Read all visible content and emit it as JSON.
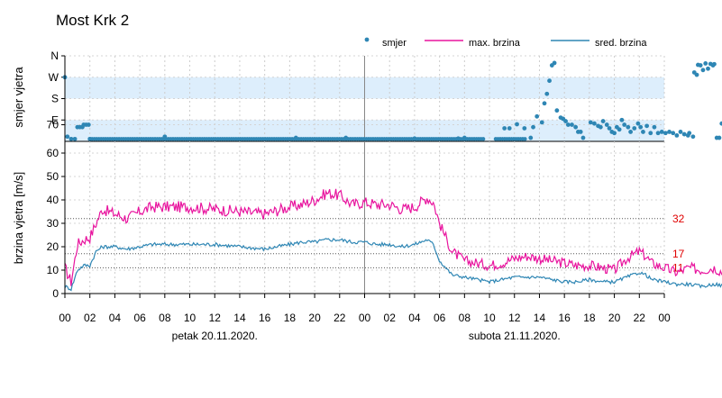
{
  "chart_data": {
    "type": "line",
    "title": "Most Krk 2",
    "x_ticks": [
      "00",
      "02",
      "04",
      "06",
      "08",
      "10",
      "12",
      "14",
      "16",
      "18",
      "20",
      "22",
      "00",
      "02",
      "04",
      "06",
      "08",
      "10",
      "12",
      "14",
      "16",
      "18",
      "20",
      "22",
      "00"
    ],
    "x_range_hours": [
      0,
      48
    ],
    "days": [
      {
        "label": "petak  20.11.2020.",
        "center_hour": 12
      },
      {
        "label": "subota  21.11.2020.",
        "center_hour": 36
      }
    ],
    "legend": {
      "placement": "top-right",
      "entries": [
        "smjer",
        "max. brzina",
        "sred. brzina"
      ]
    },
    "colors": {
      "smjer": "#2e86b4",
      "max": "#e8149e",
      "avg": "#2e86b4",
      "reference": "#e00000",
      "band": "#ddeefc"
    },
    "direction_panel": {
      "ylabel": "smjer vjetra",
      "tick_labels": [
        "N",
        "W",
        "S",
        "E",
        "70"
      ],
      "tick_degrees": [
        360,
        270,
        180,
        90,
        70
      ],
      "ylim": [
        0,
        360
      ],
      "smjer_hour_deg": [
        [
          0.0,
          270
        ],
        [
          0.2,
          20
        ],
        [
          0.5,
          10
        ],
        [
          0.8,
          10
        ],
        [
          1.0,
          60
        ],
        [
          1.2,
          60
        ],
        [
          1.4,
          60
        ],
        [
          1.5,
          70
        ],
        [
          1.7,
          70
        ],
        [
          1.9,
          70
        ],
        [
          2.0,
          10
        ],
        [
          8.0,
          20
        ],
        [
          18.5,
          15
        ],
        [
          22.5,
          15
        ],
        [
          28.0,
          12
        ],
        [
          31.5,
          12
        ],
        [
          32.0,
          15
        ],
        [
          35.2,
          55
        ],
        [
          35.6,
          55
        ],
        [
          36.2,
          72
        ],
        [
          36.8,
          55
        ],
        [
          37.3,
          15
        ],
        [
          37.5,
          60
        ],
        [
          37.8,
          105
        ],
        [
          38.2,
          80
        ],
        [
          38.4,
          160
        ],
        [
          38.6,
          200
        ],
        [
          38.8,
          255
        ],
        [
          39.0,
          320
        ],
        [
          39.2,
          330
        ],
        [
          39.4,
          130
        ],
        [
          39.7,
          100
        ],
        [
          39.9,
          95
        ],
        [
          40.1,
          85
        ],
        [
          40.3,
          70
        ],
        [
          40.6,
          70
        ],
        [
          40.9,
          60
        ],
        [
          41.1,
          40
        ],
        [
          41.3,
          40
        ],
        [
          41.5,
          15
        ],
        [
          42.1,
          80
        ],
        [
          42.4,
          75
        ],
        [
          42.7,
          65
        ],
        [
          42.9,
          60
        ],
        [
          43.1,
          85
        ],
        [
          43.4,
          70
        ],
        [
          43.6,
          55
        ],
        [
          43.8,
          40
        ],
        [
          44.0,
          35
        ],
        [
          44.2,
          60
        ],
        [
          44.4,
          50
        ],
        [
          44.6,
          90
        ],
        [
          44.8,
          70
        ],
        [
          45.1,
          60
        ],
        [
          45.3,
          40
        ],
        [
          45.6,
          55
        ],
        [
          45.9,
          75
        ],
        [
          46.1,
          60
        ],
        [
          46.3,
          40
        ],
        [
          46.6,
          65
        ],
        [
          46.9,
          35
        ],
        [
          47.2,
          60
        ],
        [
          47.5,
          35
        ],
        [
          47.8,
          40
        ],
        [
          48.1,
          35
        ],
        [
          48.4,
          40
        ],
        [
          48.7,
          35
        ],
        [
          49.0,
          25
        ],
        [
          49.3,
          40
        ],
        [
          49.6,
          30
        ],
        [
          49.9,
          25
        ],
        [
          50.0,
          35
        ],
        [
          50.3,
          20
        ],
        [
          50.4,
          290
        ],
        [
          50.6,
          280
        ],
        [
          50.7,
          322
        ],
        [
          50.9,
          320
        ],
        [
          51.1,
          300
        ],
        [
          51.3,
          328
        ],
        [
          51.5,
          306
        ],
        [
          51.7,
          326
        ],
        [
          51.9,
          320
        ],
        [
          52.0,
          325
        ],
        [
          52.2,
          15
        ],
        [
          52.4,
          15
        ],
        [
          52.6,
          75
        ],
        [
          52.8,
          28
        ],
        [
          53.0,
          20
        ],
        [
          53.2,
          75
        ],
        [
          53.4,
          325
        ],
        [
          53.6,
          310
        ]
      ],
      "baseline_deg": 10,
      "baseline_range_hours": [
        [
          2.0,
          33.5
        ],
        [
          34.5,
          37.0
        ]
      ]
    },
    "speed_panel": {
      "ylabel": "brzina vjetra [m/s]",
      "ylim": [
        0,
        65
      ],
      "yticks": [
        0,
        10,
        20,
        30,
        40,
        50,
        60
      ],
      "reference_lines": [
        32,
        17,
        11
      ],
      "series": [
        {
          "name": "max. brzina",
          "hours": [
            0,
            0.5,
            1,
            1.5,
            2,
            2.5,
            3,
            4,
            5,
            6,
            7,
            8,
            10,
            12,
            14,
            16,
            18,
            19,
            20,
            21,
            22,
            23,
            24,
            25,
            26,
            27,
            28,
            29,
            29.5,
            30,
            31,
            32,
            33,
            34,
            35,
            36,
            37,
            38,
            39,
            40,
            41,
            42,
            43,
            44,
            45,
            46,
            46.5,
            47,
            48,
            49,
            50,
            51,
            52,
            53,
            53.4
          ],
          "values": [
            11,
            5,
            21,
            23,
            24,
            30,
            36,
            34,
            32,
            35,
            37,
            37,
            37,
            36,
            35,
            34,
            37,
            38,
            40,
            43,
            42,
            38,
            39,
            38,
            38,
            36,
            37,
            41,
            39,
            30,
            18,
            14,
            13,
            12,
            13,
            15,
            16,
            15,
            14,
            13,
            12,
            12,
            11,
            10,
            15,
            18,
            16,
            13,
            11,
            9,
            11,
            10,
            11,
            8,
            4
          ]
        },
        {
          "name": "sred. brzina",
          "hours": [
            0,
            0.5,
            1,
            1.5,
            2,
            2.5,
            3,
            4,
            5,
            6,
            7,
            8,
            10,
            12,
            14,
            16,
            18,
            19,
            20,
            21,
            22,
            23,
            24,
            25,
            26,
            27,
            28,
            29,
            29.5,
            30,
            31,
            32,
            33,
            34,
            35,
            36,
            37,
            38,
            39,
            40,
            41,
            42,
            43,
            44,
            45,
            46,
            46.5,
            47,
            48,
            49,
            50,
            51,
            52,
            53,
            53.4
          ],
          "values": [
            3,
            2,
            10,
            12,
            12,
            18,
            20,
            20,
            19,
            20,
            21,
            21,
            21,
            21,
            20,
            19,
            21,
            22,
            22,
            23,
            23,
            22,
            22,
            21,
            21,
            20,
            21,
            23,
            21,
            14,
            8,
            7,
            6,
            5,
            6,
            7,
            7,
            7,
            6,
            5,
            5,
            6,
            5,
            5,
            7,
            9,
            8,
            6,
            5,
            4,
            4,
            3,
            4,
            3,
            2
          ]
        }
      ]
    }
  }
}
